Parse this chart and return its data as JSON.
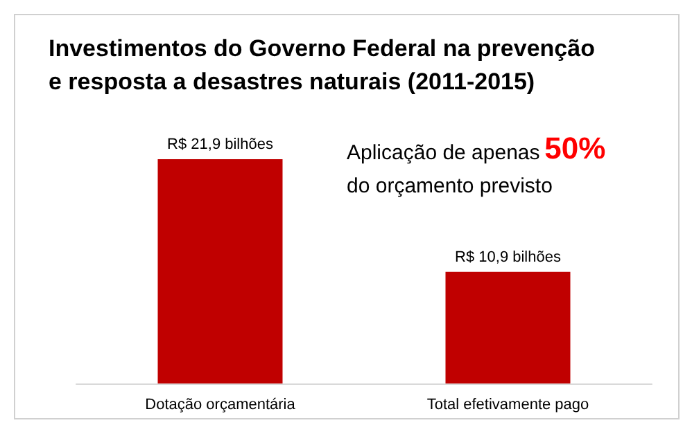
{
  "chart_data": {
    "type": "bar",
    "title": "Investimentos do Governo Federal na prevenção\ne resposta a desastres naturais (2011-2015)",
    "categories": [
      "Dotação orçamentária",
      "Total efetivamente pago"
    ],
    "values": [
      21.9,
      10.9
    ],
    "value_labels": [
      "R$ 21,9 bilhões",
      "R$ 10,9 bilhões"
    ],
    "color": "#c00000",
    "annotations": [
      "Aplicação de apenas",
      "50%",
      "do orçamento previsto"
    ]
  }
}
